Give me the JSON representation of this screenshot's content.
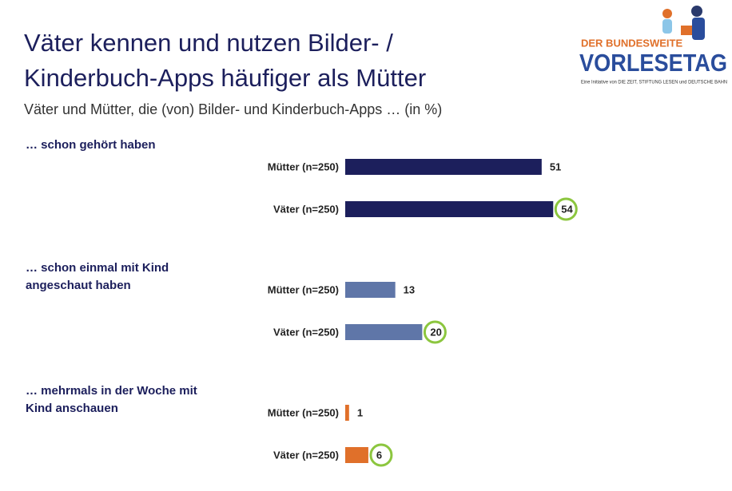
{
  "chart_data": {
    "type": "bar",
    "title": "Väter kennen und nutzen Bilder- / Kinderbuch-Apps häufiger als Mütter",
    "subtitle": "Väter und Mütter, die (von) Bilder- und Kinderbuch-Apps … (in %)",
    "highlight_color": "#8cc63f",
    "groups": [
      {
        "label": "… schon gehört haben",
        "color": "#1c1f5c",
        "categories": [
          "Mütter (n=250)",
          "Väter (n=250)"
        ],
        "values": [
          51,
          54
        ]
      },
      {
        "label": "… schon einmal mit Kind angeschaut haben",
        "color": "#5f76a8",
        "categories": [
          "Mütter (n=250)",
          "Väter (n=250)"
        ],
        "values": [
          13,
          20
        ]
      },
      {
        "label": "… mehrmals in der Woche mit Kind anschauen",
        "color": "#e0702a",
        "categories": [
          "Mütter (n=250)",
          "Väter (n=250)"
        ],
        "values": [
          1,
          6
        ]
      }
    ]
  },
  "logo": {
    "top": "DER BUNDESWEITE",
    "name": "VORLESETAG",
    "tagline": "Eine Initiative von DIE ZEIT, STIFTUNG LESEN und DEUTSCHE BAHN"
  }
}
